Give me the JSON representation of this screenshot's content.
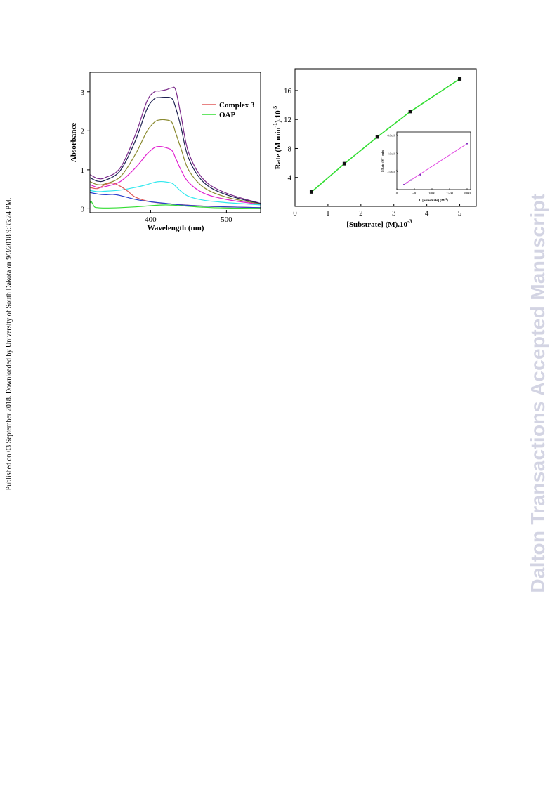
{
  "side_note": "Published on 03 September 2018. Downloaded by University of South Dakota on 9/3/2018 9:35:24 PM.",
  "watermark": "Dalton Transactions Accepted Manuscript",
  "chart_data": [
    {
      "type": "line",
      "xlabel": "Wavelength (nm)",
      "ylabel": "Absorbance",
      "xlim": [
        320,
        545
      ],
      "ylim": [
        -0.1,
        3.5
      ],
      "xticks": [
        400,
        500
      ],
      "yticks": [
        0,
        1,
        2,
        3
      ],
      "legend": {
        "placement": "top-right",
        "entries": [
          {
            "name": "Complex 3",
            "color": "#e05a5a"
          },
          {
            "name": "OAP",
            "color": "#33dd33"
          }
        ]
      },
      "series": [
        {
          "name": "",
          "color": "#7a2a8a",
          "x": [
            320,
            330,
            340,
            360,
            380,
            395,
            405,
            412,
            420,
            428,
            433,
            440,
            450,
            470,
            500,
            545
          ],
          "y": [
            0.88,
            0.78,
            0.8,
            1.05,
            1.9,
            2.75,
            3.0,
            3.02,
            3.05,
            3.1,
            3.05,
            2.4,
            1.45,
            0.75,
            0.4,
            0.14
          ]
        },
        {
          "name": "",
          "color": "#1c2050",
          "x": [
            320,
            330,
            340,
            360,
            380,
            395,
            405,
            412,
            420,
            428,
            433,
            440,
            450,
            470,
            500,
            545
          ],
          "y": [
            0.8,
            0.71,
            0.73,
            0.98,
            1.75,
            2.55,
            2.82,
            2.85,
            2.86,
            2.83,
            2.6,
            2.1,
            1.3,
            0.68,
            0.36,
            0.13
          ]
        },
        {
          "name": "",
          "color": "#8a8a30",
          "x": [
            320,
            330,
            340,
            360,
            380,
            395,
            405,
            412,
            420,
            428,
            433,
            440,
            450,
            470,
            500,
            545
          ],
          "y": [
            0.7,
            0.62,
            0.64,
            0.82,
            1.4,
            1.98,
            2.22,
            2.28,
            2.28,
            2.22,
            1.95,
            1.55,
            1.0,
            0.55,
            0.3,
            0.12
          ]
        },
        {
          "name": "",
          "color": "#e020d0",
          "x": [
            320,
            330,
            340,
            360,
            380,
            395,
            405,
            412,
            420,
            428,
            433,
            440,
            450,
            470,
            500,
            545
          ],
          "y": [
            0.62,
            0.55,
            0.57,
            0.7,
            1.05,
            1.4,
            1.57,
            1.6,
            1.57,
            1.5,
            1.3,
            1.0,
            0.68,
            0.4,
            0.24,
            0.11
          ]
        },
        {
          "name": "",
          "color": "#30e8ee",
          "x": [
            320,
            330,
            340,
            360,
            380,
            395,
            405,
            412,
            420,
            428,
            433,
            440,
            450,
            470,
            500,
            545
          ],
          "y": [
            0.47,
            0.44,
            0.45,
            0.48,
            0.55,
            0.62,
            0.68,
            0.7,
            0.69,
            0.66,
            0.58,
            0.45,
            0.32,
            0.22,
            0.16,
            0.1
          ]
        },
        {
          "name": "Complex 3",
          "color": "#e05a5a",
          "x": [
            320,
            330,
            340,
            350,
            360,
            370,
            380,
            400,
            430,
            470,
            500,
            545
          ],
          "y": [
            0.55,
            0.52,
            0.62,
            0.66,
            0.58,
            0.45,
            0.3,
            0.18,
            0.12,
            0.07,
            0.05,
            0.03
          ]
        },
        {
          "name": "",
          "color": "#2a40cc",
          "x": [
            320,
            330,
            340,
            350,
            360,
            380,
            400,
            420,
            440,
            470,
            500,
            545
          ],
          "y": [
            0.42,
            0.38,
            0.36,
            0.37,
            0.34,
            0.24,
            0.18,
            0.14,
            0.1,
            0.07,
            0.05,
            0.03
          ]
        },
        {
          "name": "OAP",
          "color": "#33dd33",
          "x": [
            320,
            322,
            326,
            330,
            340,
            360,
            380,
            400,
            420,
            440,
            470,
            500,
            545
          ],
          "y": [
            0.15,
            0.18,
            0.05,
            0.03,
            0.02,
            0.03,
            0.05,
            0.08,
            0.1,
            0.08,
            0.04,
            0.02,
            0.01
          ]
        }
      ]
    },
    {
      "type": "scatter",
      "xlabel": "[Substrate] (M).10",
      "xlabel_sup": "-3",
      "ylabel": "Rate (M min",
      "ylabel_sup1": "-1",
      "ylabel_mid": ").10",
      "ylabel_sup2": "-5",
      "xlim": [
        0,
        5.5
      ],
      "ylim": [
        0,
        19
      ],
      "xticks": [
        0,
        1,
        2,
        3,
        4,
        5
      ],
      "yticks": [
        4,
        8,
        12,
        16
      ],
      "grid": false,
      "series": [
        {
          "name": "",
          "color": "#33dd33",
          "marker_color": "#111111",
          "x": [
            0.5,
            1.5,
            2.5,
            3.5,
            5.0
          ],
          "y": [
            2.0,
            5.9,
            9.6,
            13.1,
            17.6
          ]
        }
      ],
      "inset": {
        "type": "scatter",
        "xlabel": "1/ [Substrate] (M",
        "xlabel_sup": "-1",
        "xlabel_end": ")",
        "ylabel": "1/Rate (M",
        "ylabel_sup": "-1",
        "ylabel_end": " min)",
        "xlim": [
          0,
          2100
        ],
        "ylim": [
          0,
          6.4
        ],
        "xticks": [
          "0",
          "500",
          "1000",
          "1500",
          "2000"
        ],
        "ytick_values": [
          2,
          4,
          6
        ],
        "ytick_labels": [
          "2.0x10",
          "4.0x10",
          "6.0x10"
        ],
        "ytick_sup": "4",
        "series": [
          {
            "name": "",
            "color": "#e040e0",
            "marker_color": "#8030c0",
            "x": [
              200,
              285,
              400,
              667,
              2000
            ],
            "y": [
              0.55,
              0.75,
              1.05,
              1.65,
              5.1
            ]
          }
        ]
      }
    }
  ]
}
